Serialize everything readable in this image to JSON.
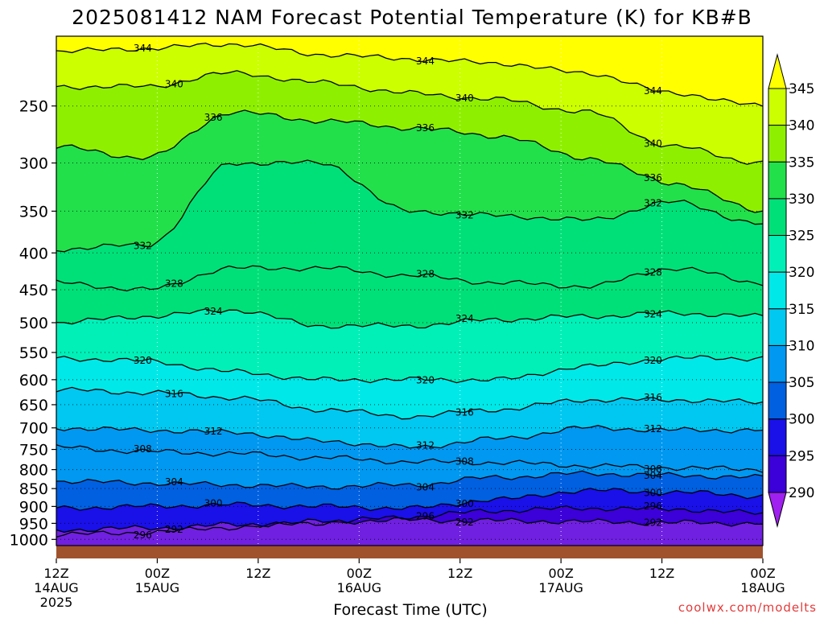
{
  "chart_data": {
    "type": "contour",
    "title": "2025081412 NAM Forecast Potential Temperature (K) for KB#B",
    "xlabel": "Forecast Time (UTC)",
    "ylabel": "",
    "credit": "coolwx.com/modelts",
    "units": "K",
    "x_ticks": [
      {
        "hours": 0,
        "label": "12Z",
        "date": "14AUG",
        "year": "2025"
      },
      {
        "hours": 12,
        "label": "00Z",
        "date": "15AUG",
        "year": ""
      },
      {
        "hours": 24,
        "label": "12Z",
        "date": "",
        "year": ""
      },
      {
        "hours": 36,
        "label": "00Z",
        "date": "16AUG",
        "year": ""
      },
      {
        "hours": 48,
        "label": "12Z",
        "date": "",
        "year": ""
      },
      {
        "hours": 60,
        "label": "00Z",
        "date": "17AUG",
        "year": ""
      },
      {
        "hours": 72,
        "label": "12Z",
        "date": "",
        "year": ""
      },
      {
        "hours": 84,
        "label": "00Z",
        "date": "18AUG",
        "year": ""
      }
    ],
    "xlim_hours": [
      0,
      84
    ],
    "y_ticks": [
      "250",
      "300",
      "350",
      "400",
      "450",
      "500",
      "550",
      "600",
      "650",
      "700",
      "750",
      "800",
      "850",
      "900",
      "950",
      "1000"
    ],
    "y_tick_values": [
      250,
      300,
      350,
      400,
      450,
      500,
      550,
      600,
      650,
      700,
      750,
      800,
      850,
      900,
      950,
      1000
    ],
    "ylim_hpa": [
      200,
      1020
    ],
    "y_scale": "log-pressure (inverted)",
    "grid": "dotted at major ticks",
    "colorbar": {
      "labels": [
        "345",
        "340",
        "335",
        "330",
        "325",
        "320",
        "315",
        "310",
        "305",
        "300",
        "295",
        "290"
      ],
      "levels": [
        345,
        340,
        335,
        330,
        325,
        320,
        315,
        310,
        305,
        300,
        295,
        290
      ],
      "extend": "both",
      "colors": [
        "#ffff00",
        "#ccff00",
        "#8ef000",
        "#22e04a",
        "#00e078",
        "#00f0b8",
        "#00e8e8",
        "#00c8f0",
        "#0098f0",
        "#0060e0",
        "#1a10e8",
        "#3c00d8",
        "#7020e0",
        "#a020f0"
      ]
    },
    "isentropes": [
      {
        "value": 292,
        "p": [
          970,
          965,
          955,
          945,
          940,
          942,
          945,
          948,
          950
        ],
        "label": "292"
      },
      {
        "value": 296,
        "p": [
          985,
          978,
          962,
          948,
          930,
          912,
          905,
          908,
          920
        ],
        "label": "296"
      },
      {
        "value": 300,
        "p": [
          905,
          900,
          895,
          900,
          905,
          880,
          855,
          860,
          870
        ],
        "label": "300"
      },
      {
        "value": 304,
        "p": [
          830,
          835,
          840,
          845,
          840,
          820,
          810,
          815,
          820
        ],
        "label": "304"
      },
      {
        "value": 308,
        "p": [
          745,
          755,
          760,
          770,
          780,
          782,
          790,
          795,
          800
        ],
        "label": "308"
      },
      {
        "value": 312,
        "p": [
          700,
          705,
          710,
          730,
          745,
          725,
          700,
          705,
          705
        ],
        "label": "312"
      },
      {
        "value": 316,
        "p": [
          620,
          625,
          635,
          660,
          675,
          660,
          640,
          640,
          645
        ],
        "label": "316"
      },
      {
        "value": 320,
        "p": [
          560,
          565,
          585,
          600,
          600,
          600,
          575,
          560,
          560
        ],
        "label": "320"
      },
      {
        "value": 324,
        "p": [
          500,
          490,
          480,
          505,
          505,
          495,
          490,
          485,
          490
        ],
        "label": "324"
      },
      {
        "value": 328,
        "p": [
          440,
          450,
          420,
          420,
          430,
          440,
          445,
          420,
          440
        ],
        "label": "328"
      },
      {
        "value": 332,
        "p": [
          395,
          390,
          300,
          300,
          350,
          355,
          360,
          340,
          365
        ],
        "label": "332"
      },
      {
        "value": 336,
        "p": [
          285,
          295,
          255,
          262,
          268,
          275,
          295,
          320,
          350
        ],
        "label": "336"
      },
      {
        "value": 340,
        "p": [
          235,
          235,
          225,
          232,
          240,
          245,
          255,
          285,
          300
        ],
        "label": "340"
      },
      {
        "value": 344,
        "p": [
          210,
          208,
          205,
          212,
          215,
          218,
          225,
          240,
          250
        ],
        "label": "344"
      }
    ],
    "annotations": [
      "340",
      "344",
      "340",
      "336",
      "336",
      "336",
      "340",
      "332",
      "332",
      "328",
      "328",
      "328",
      "324",
      "324",
      "320",
      "320",
      "320",
      "316",
      "316",
      "316",
      "312",
      "312",
      "312",
      "308",
      "308",
      "308",
      "304",
      "304",
      "304",
      "300",
      "300",
      "300",
      "296",
      "296",
      "292",
      "292",
      "296"
    ],
    "surface_color": "#a0522d"
  },
  "colors": {
    "background": "#ffffff",
    "credit": "#e23b3b",
    "surface": "#a0522d"
  }
}
